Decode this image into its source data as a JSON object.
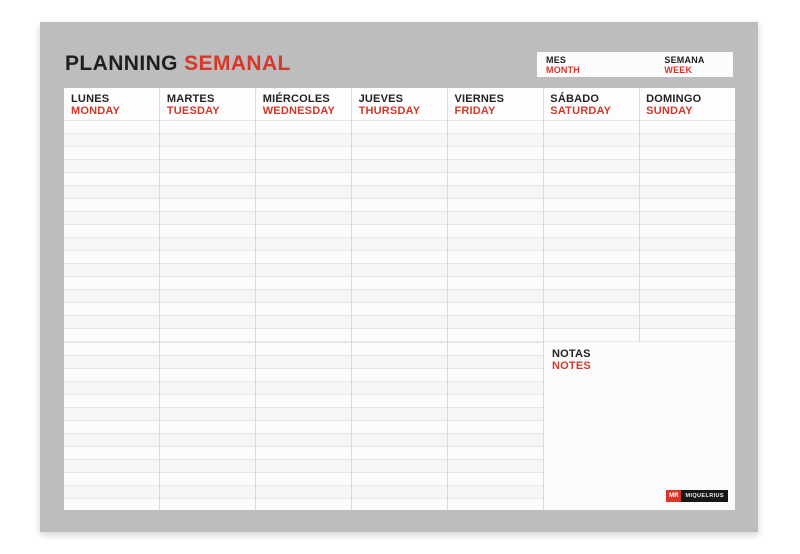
{
  "title": {
    "part_black": "PLANNING",
    "part_red": "SEMANAL"
  },
  "top_fields": [
    {
      "label_es": "MES",
      "label_en": "MONTH"
    },
    {
      "label_es": "SEMANA",
      "label_en": "WEEK"
    }
  ],
  "days": [
    {
      "es": "LUNES",
      "en": "MONDAY"
    },
    {
      "es": "MARTES",
      "en": "TUESDAY"
    },
    {
      "es": "MIÉRCOLES",
      "en": "WEDNESDAY"
    },
    {
      "es": "JUEVES",
      "en": "THURSDAY"
    },
    {
      "es": "VIERNES",
      "en": "FRIDAY"
    },
    {
      "es": "SÁBADO",
      "en": "SATURDAY"
    },
    {
      "es": "DOMINGO",
      "en": "SUNDAY"
    }
  ],
  "notes": {
    "es": "NOTAS",
    "en": "NOTES"
  },
  "logo": {
    "mark": "MR",
    "brand": "MIQUELRIUS"
  },
  "colors": {
    "accent_red": "#d9362a",
    "board_gray": "#bdbdbd",
    "sheet_white": "#fbfbfb",
    "rule_line": "#e7e7e7",
    "column_line": "#d9d9d9",
    "text_black": "#1f1f1d"
  }
}
